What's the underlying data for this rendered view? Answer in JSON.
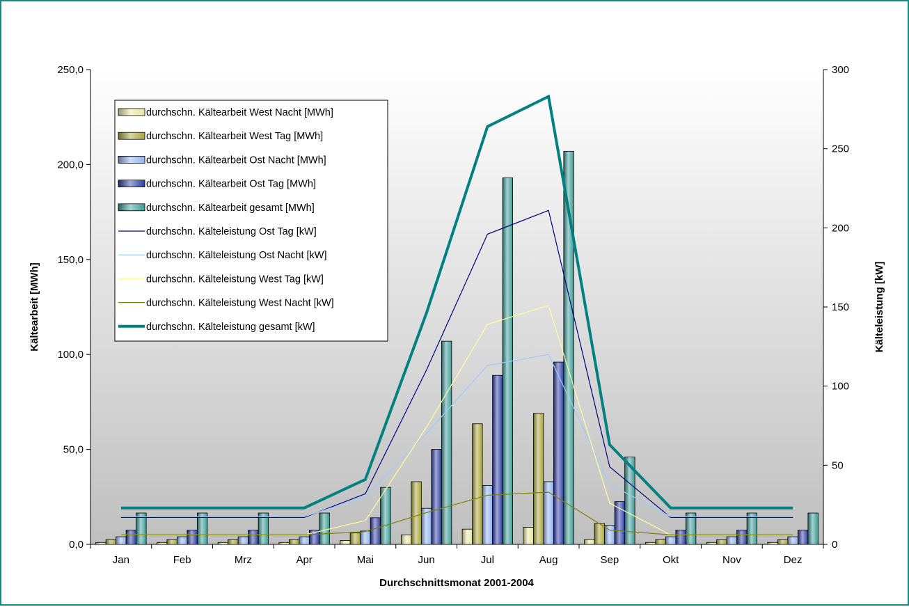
{
  "chart_data": {
    "type": "bar",
    "xlabel": "Durchschnittsmonat 2001-2004",
    "ylabel": "Kältearbeit [MWh]",
    "y2label": "Kälteleistung [kW]",
    "ylim": [
      0,
      250
    ],
    "y2lim": [
      0,
      300
    ],
    "yticks": [
      0,
      50,
      100,
      150,
      200,
      250
    ],
    "yticklabels": [
      "0,0",
      "50,0",
      "100,0",
      "150,0",
      "200,0",
      "250,0"
    ],
    "y2ticks": [
      0,
      50,
      100,
      150,
      200,
      250,
      300
    ],
    "y2ticklabels": [
      "0",
      "50",
      "100",
      "150",
      "200",
      "250",
      "300"
    ],
    "categories": [
      "Jan",
      "Feb",
      "Mrz",
      "Apr",
      "Mai",
      "Jun",
      "Jul",
      "Aug",
      "Sep",
      "Okt",
      "Nov",
      "Dez"
    ],
    "legend_position": "top-left",
    "series": [
      {
        "name": "durchschn. Kältearbeit West Nacht [MWh]",
        "kind": "bar",
        "axis": "left",
        "color": "#e8e6a2",
        "values": [
          1,
          1,
          1,
          1,
          2,
          5,
          8,
          9,
          2.5,
          1,
          1,
          1
        ]
      },
      {
        "name": "durchschn. Kältearbeit West Tag [MWh]",
        "kind": "bar",
        "axis": "left",
        "color": "#a9a43a",
        "values": [
          2.5,
          2.5,
          2.5,
          2.5,
          6,
          33,
          63.5,
          69,
          11,
          2.5,
          2.5,
          2.5
        ]
      },
      {
        "name": "durchschn. Kältearbeit Ost Nacht [MWh]",
        "kind": "bar",
        "axis": "left",
        "color": "#8fb3ee",
        "values": [
          4,
          4,
          4,
          4,
          7,
          19,
          31,
          33,
          10,
          4,
          4,
          4
        ]
      },
      {
        "name": "durchschn. Kältearbeit Ost Tag [MWh]",
        "kind": "bar",
        "axis": "left",
        "color": "#2e3ea6",
        "values": [
          7.5,
          7.5,
          7.5,
          7.5,
          14,
          50,
          89,
          96,
          22.5,
          7.5,
          7.5,
          7.5
        ]
      },
      {
        "name": "durchschn. Kältearbeit gesamt [MWh]",
        "kind": "bar",
        "axis": "left",
        "color": "#3a9c96",
        "values": [
          16.5,
          16.5,
          16.5,
          16.5,
          30,
          107,
          193,
          207,
          46,
          16.5,
          16.5,
          16.5
        ]
      },
      {
        "name": "durchschn. Kälteleistung Ost Tag [kW]",
        "kind": "line",
        "axis": "right",
        "color": "#000080",
        "width": 1.2,
        "values": [
          17,
          17,
          17,
          17,
          32,
          110,
          196,
          211,
          49,
          17,
          17,
          17
        ]
      },
      {
        "name": "durchschn. Kälteleistung Ost Nacht [kW]",
        "kind": "line",
        "axis": "right",
        "color": "#99ccff",
        "width": 1.2,
        "values": [
          17.5,
          17.5,
          17.5,
          17.5,
          30,
          70,
          113,
          120,
          38,
          17.5,
          17.5,
          17.5
        ]
      },
      {
        "name": "durchschn. Kälteleistung West Tag [kW]",
        "kind": "line",
        "axis": "right",
        "color": "#ffff99",
        "width": 1.2,
        "values": [
          6,
          6,
          6,
          6,
          15,
          74,
          139,
          151,
          26,
          6,
          6,
          6
        ]
      },
      {
        "name": "durchschn. Kälteleistung West Nacht [kW]",
        "kind": "line",
        "axis": "right",
        "color": "#808000",
        "width": 1.2,
        "values": [
          6,
          6,
          6,
          6,
          8,
          20,
          31,
          33,
          9,
          6,
          6,
          6
        ]
      },
      {
        "name": "durchschn. Kälteleistung gesamt [kW]",
        "kind": "line",
        "axis": "right",
        "color": "#008080",
        "width": 4,
        "values": [
          23,
          23,
          23,
          23,
          41,
          146,
          264,
          283,
          63,
          23,
          23,
          23
        ]
      }
    ]
  }
}
